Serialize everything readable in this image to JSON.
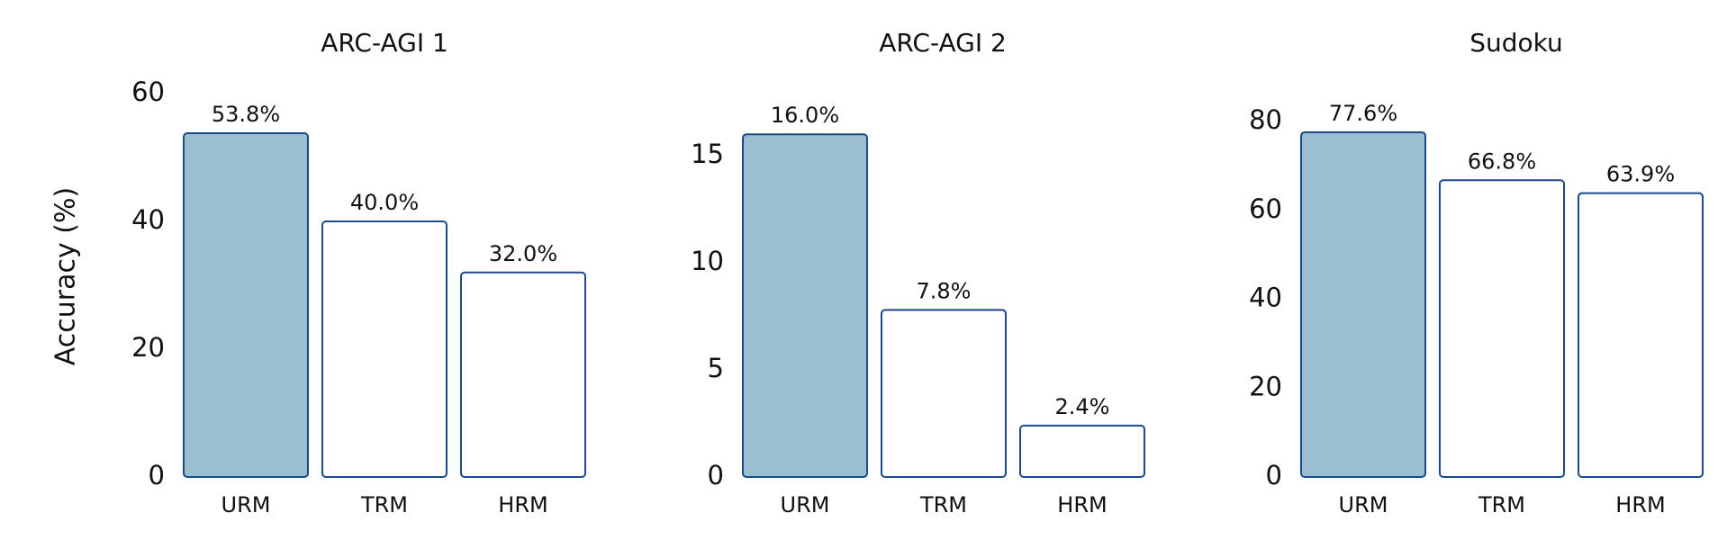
{
  "chart_data": [
    {
      "type": "bar",
      "title": "ARC-AGI 1",
      "ylabel": "Accuracy (%)",
      "categories": [
        "URM",
        "TRM",
        "HRM"
      ],
      "values": [
        53.8,
        40.0,
        32.0
      ],
      "value_labels": [
        "53.8%",
        "40.0%",
        "32.0%"
      ],
      "colors": [
        "#9bbfd1",
        "#ffffff",
        "#ffffff"
      ],
      "edge_color": "#1b4a8a",
      "ylim": [
        0,
        60
      ],
      "yticks": [
        0,
        20,
        40,
        60
      ]
    },
    {
      "type": "bar",
      "title": "ARC-AGI 2",
      "categories": [
        "URM",
        "TRM",
        "HRM"
      ],
      "values": [
        16.0,
        7.8,
        2.4
      ],
      "value_labels": [
        "16.0%",
        "7.8%",
        "2.4%"
      ],
      "colors": [
        "#9bbfd1",
        "#ffffff",
        "#ffffff"
      ],
      "edge_color": "#1b4a8a",
      "ylim": [
        0,
        17.9
      ],
      "yticks": [
        0,
        5,
        10,
        15
      ]
    },
    {
      "type": "bar",
      "title": "Sudoku",
      "categories": [
        "URM",
        "TRM",
        "HRM"
      ],
      "values": [
        77.6,
        66.8,
        63.9
      ],
      "value_labels": [
        "77.6%",
        "66.8%",
        "63.9%"
      ],
      "colors": [
        "#9bbfd1",
        "#ffffff",
        "#ffffff"
      ],
      "edge_color": "#1b4a8a",
      "ylim": [
        0,
        86.3
      ],
      "yticks": [
        0,
        20,
        40,
        60,
        80
      ]
    }
  ]
}
